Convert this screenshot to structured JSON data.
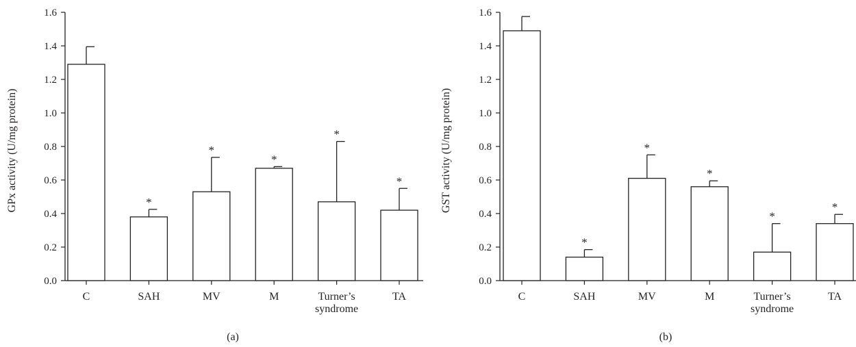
{
  "chart_data": [
    {
      "type": "bar",
      "panel_label": "(a)",
      "ylabel": "GPx activity (U/mg protein)",
      "ylim": [
        0,
        1.6
      ],
      "yticks": [
        "0.0",
        "0.2",
        "0.4",
        "0.6",
        "0.8",
        "1.0",
        "1.2",
        "1.4",
        "1.6"
      ],
      "categories": [
        [
          "C"
        ],
        [
          "SAH"
        ],
        [
          "MV"
        ],
        [
          "M"
        ],
        [
          "Turner’s",
          "syndrome"
        ],
        [
          "TA"
        ]
      ],
      "values": [
        1.29,
        0.38,
        0.53,
        0.67,
        0.47,
        0.42
      ],
      "errors": [
        0.105,
        0.045,
        0.205,
        0.01,
        0.36,
        0.13
      ],
      "significance": [
        "",
        "*",
        "*",
        "*",
        "*",
        "*"
      ],
      "grid": false,
      "bar_fill": "#ffffff",
      "bar_stroke": "#231f20"
    },
    {
      "type": "bar",
      "panel_label": "(b)",
      "ylabel": "GST activity (U/mg protein)",
      "ylim": [
        0,
        1.6
      ],
      "yticks": [
        "0.0",
        "0.2",
        "0.4",
        "0.6",
        "0.8",
        "1.0",
        "1.2",
        "1.4",
        "1.6"
      ],
      "categories": [
        [
          "C"
        ],
        [
          "SAH"
        ],
        [
          "MV"
        ],
        [
          "M"
        ],
        [
          "Turner’s",
          "syndrome"
        ],
        [
          "TA"
        ]
      ],
      "values": [
        1.49,
        0.14,
        0.61,
        0.56,
        0.17,
        0.34
      ],
      "errors": [
        0.085,
        0.045,
        0.14,
        0.035,
        0.17,
        0.055
      ],
      "significance": [
        "",
        "*",
        "*",
        "*",
        "*",
        "*"
      ],
      "grid": false,
      "bar_fill": "#ffffff",
      "bar_stroke": "#231f20"
    }
  ]
}
